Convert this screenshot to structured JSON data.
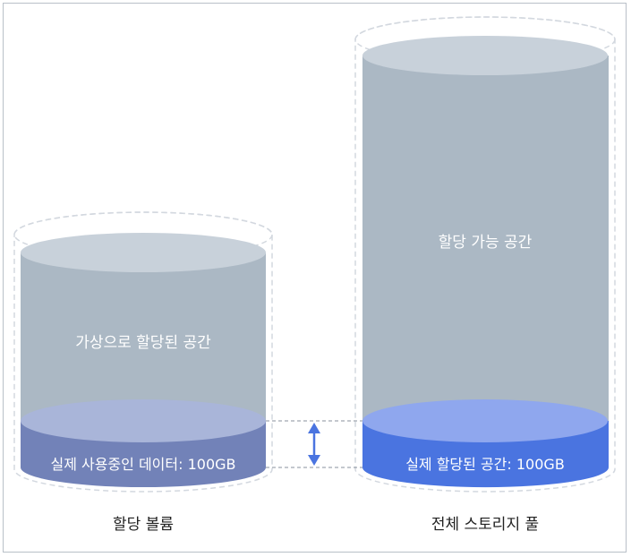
{
  "left_cylinder": {
    "virtual_label": "가상으로 할당된 공간",
    "data_label": "실제 사용중인 데이터: 100GB",
    "caption": "할당 볼륨"
  },
  "right_cylinder": {
    "free_label": "할당 가능 공간",
    "allocated_label": "실제 할당된 공간: 100GB",
    "caption": "전체 스토리지 풀"
  },
  "colors": {
    "cylinder_body": "#abb8c4",
    "cylinder_top": "#c8d1da",
    "left_fill": "#7282b8",
    "left_fill_top": "#a9b5d9",
    "right_fill": "#4a74e0",
    "right_fill_top": "#8fa7ee",
    "dashed_outline": "#d3d8df",
    "arrow": "#4a74e0",
    "frame": "#b9c0c8"
  }
}
